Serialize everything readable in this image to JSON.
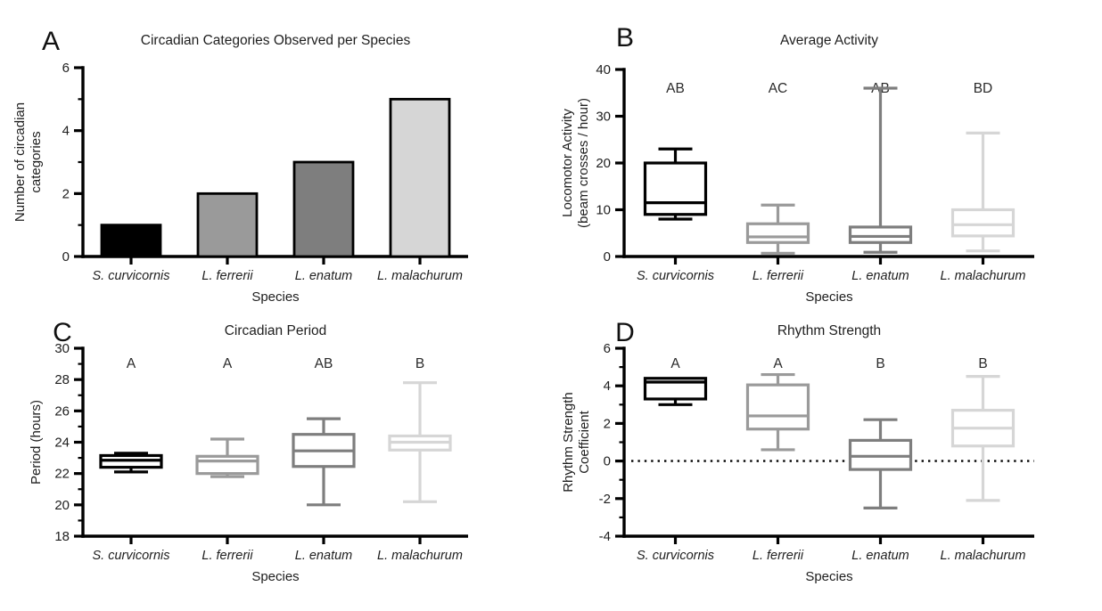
{
  "figure": {
    "background_color": "#ffffff",
    "text_color": "#1e1e1e",
    "series_colors": [
      "#000000",
      "#9a9a9a",
      "#7e7e7e",
      "#d6d6d6"
    ]
  },
  "chart_data": [
    {
      "panel_label": "A",
      "type": "bar",
      "title": "Circadian Categories Observed per Species",
      "xlabel": "Species",
      "ylabel_lines": [
        "Number of circadian",
        "categories"
      ],
      "categories": [
        "S. curvicornis",
        "L. ferrerii",
        "L. enatum",
        "L. malachurum"
      ],
      "values": [
        1,
        2,
        3,
        5
      ],
      "colors": [
        "#000000",
        "#9a9a9a",
        "#7e7e7e",
        "#d6d6d6"
      ],
      "bar_outline_color": "#000000",
      "ylim": [
        0,
        6
      ],
      "yticks": [
        0,
        2,
        4,
        6
      ],
      "minor_yticks": [
        1,
        3,
        5
      ],
      "grid": false,
      "legend": "none"
    },
    {
      "panel_label": "B",
      "type": "box",
      "title": "Average Activity",
      "xlabel": "Species",
      "ylabel_lines": [
        "Locomotor Activity",
        "(beam crosses / hour)"
      ],
      "categories": [
        "S. curvicornis",
        "L. ferrerii",
        "L. enatum",
        "L. malachurum"
      ],
      "group_letters": [
        "AB",
        "AC",
        "AB",
        "BD"
      ],
      "colors": [
        "#000000",
        "#9a9a9a",
        "#7e7e7e",
        "#d6d6d6"
      ],
      "series": [
        {
          "name": "S. curvicornis",
          "whisker_low": 8.0,
          "q1": 9.0,
          "median": 11.5,
          "q3": 20.0,
          "whisker_high": 23.0
        },
        {
          "name": "L. ferrerii",
          "whisker_low": 0.7,
          "q1": 3.0,
          "median": 4.2,
          "q3": 7.0,
          "whisker_high": 11.0
        },
        {
          "name": "L. enatum",
          "whisker_low": 0.9,
          "q1": 3.0,
          "median": 4.3,
          "q3": 6.3,
          "whisker_high": 36.0
        },
        {
          "name": "L. malachurum",
          "whisker_low": 1.2,
          "q1": 4.4,
          "median": 6.8,
          "q3": 10.0,
          "whisker_high": 26.4
        }
      ],
      "ylim": [
        0,
        40
      ],
      "yticks": [
        0,
        10,
        20,
        30,
        40
      ],
      "minor_yticks": [],
      "grid": false,
      "legend": "none"
    },
    {
      "panel_label": "C",
      "type": "box",
      "title": "Circadian Period",
      "xlabel": "Species",
      "ylabel_lines": [
        "Period (hours)"
      ],
      "categories": [
        "S. curvicornis",
        "L. ferrerii",
        "L. enatum",
        "L. malachurum"
      ],
      "group_letters": [
        "A",
        "A",
        "AB",
        "B"
      ],
      "colors": [
        "#000000",
        "#9a9a9a",
        "#7e7e7e",
        "#d6d6d6"
      ],
      "series": [
        {
          "name": "S. curvicornis",
          "whisker_low": 22.1,
          "q1": 22.4,
          "median": 22.85,
          "q3": 23.15,
          "whisker_high": 23.3
        },
        {
          "name": "L. ferrerii",
          "whisker_low": 21.8,
          "q1": 22.0,
          "median": 22.8,
          "q3": 23.1,
          "whisker_high": 24.2
        },
        {
          "name": "L. enatum",
          "whisker_low": 20.0,
          "q1": 22.45,
          "median": 23.45,
          "q3": 24.5,
          "whisker_high": 25.5
        },
        {
          "name": "L. malachurum",
          "whisker_low": 20.2,
          "q1": 23.5,
          "median": 24.0,
          "q3": 24.4,
          "whisker_high": 27.8
        }
      ],
      "ylim": [
        18,
        30
      ],
      "yticks": [
        18,
        20,
        22,
        24,
        26,
        28,
        30
      ],
      "minor_yticks": [
        19,
        21,
        23,
        25,
        27,
        29
      ],
      "grid": false,
      "legend": "none"
    },
    {
      "panel_label": "D",
      "type": "box",
      "title": "Rhythm Strength",
      "xlabel": "Species",
      "ylabel_lines": [
        "Rhythm Strength",
        "Coefficient"
      ],
      "categories": [
        "S. curvicornis",
        "L. ferrerii",
        "L. enatum",
        "L. malachurum"
      ],
      "group_letters": [
        "A",
        "A",
        "B",
        "B"
      ],
      "colors": [
        "#000000",
        "#9a9a9a",
        "#7e7e7e",
        "#d6d6d6"
      ],
      "series": [
        {
          "name": "S. curvicornis",
          "whisker_low": 3.0,
          "q1": 3.3,
          "median": 4.2,
          "q3": 4.4,
          "whisker_high": 4.4
        },
        {
          "name": "L. ferrerii",
          "whisker_low": 0.6,
          "q1": 1.7,
          "median": 2.4,
          "q3": 4.05,
          "whisker_high": 4.6
        },
        {
          "name": "L. enatum",
          "whisker_low": -2.5,
          "q1": -0.45,
          "median": 0.25,
          "q3": 1.1,
          "whisker_high": 2.2
        },
        {
          "name": "L. malachurum",
          "whisker_low": -2.1,
          "q1": 0.8,
          "median": 1.75,
          "q3": 2.7,
          "whisker_high": 4.5
        }
      ],
      "ylim": [
        -4,
        6
      ],
      "yticks": [
        -4,
        -2,
        0,
        2,
        4,
        6
      ],
      "minor_yticks": [
        -3,
        -1,
        1,
        3,
        5
      ],
      "reference_line": {
        "y": 0,
        "style": "dotted",
        "color": "#000000"
      },
      "grid": false,
      "legend": "none"
    }
  ]
}
